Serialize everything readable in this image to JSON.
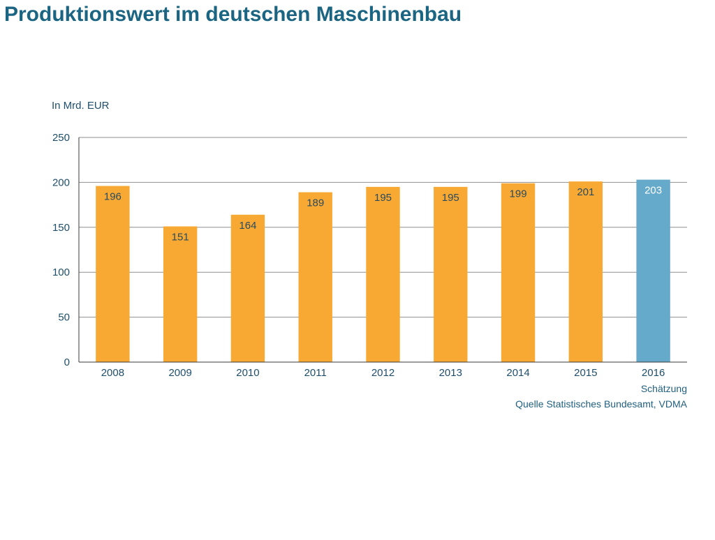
{
  "title": "Produktionswert im deutschen Maschinenbau",
  "colors": {
    "bar": "#f7a933",
    "highlight": "#66aacb",
    "text": "#1b6482"
  },
  "chart_data": {
    "type": "bar",
    "unit_label": "In Mrd. EUR",
    "categories": [
      "2008",
      "2009",
      "2010",
      "2011",
      "2012",
      "2013",
      "2014",
      "2015",
      "2016"
    ],
    "values": [
      196,
      151,
      164,
      189,
      195,
      195,
      199,
      201,
      203
    ],
    "highlight_category": "2016",
    "ylim": [
      0,
      250
    ],
    "yticks": [
      0,
      50,
      100,
      150,
      200,
      250
    ],
    "grid": true,
    "note": "Schätzung",
    "source": "Quelle Statistisches Bundesamt, VDMA"
  }
}
